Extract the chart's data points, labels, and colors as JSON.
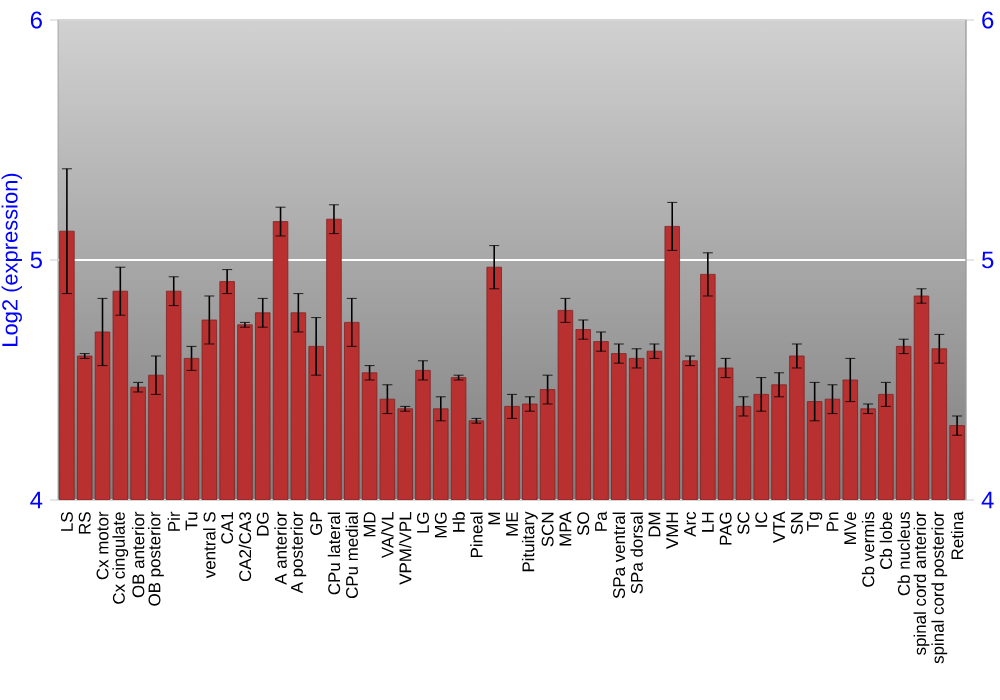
{
  "chart_data": {
    "type": "bar",
    "ylabel": "Log2 (expression)",
    "categories": [
      "LS",
      "RS",
      "Cx motor",
      "Cx cingulate",
      "OB anterior",
      "OB posterior",
      "Pir",
      "Tu",
      "ventral S",
      "CA1",
      "CA2/CA3",
      "DG",
      "A anterior",
      "A posterior",
      "GP",
      "CPu lateral",
      "CPu medial",
      "MD",
      "VA/VL",
      "VPM/VPL",
      "LG",
      "MG",
      "Hb",
      "Pineal",
      "M",
      "ME",
      "Pituitary",
      "SCN",
      "MPA",
      "SO",
      "Pa",
      "SPa ventral",
      "SPa dorsal",
      "DM",
      "VMH",
      "Arc",
      "LH",
      "PAG",
      "SC",
      "IC",
      "VTA",
      "SN",
      "Tg",
      "Pn",
      "MVe",
      "Cb vermis",
      "Cb lobe",
      "Cb nucleus",
      "spinal cord anterior",
      "spinal cord posterior",
      "Retina"
    ],
    "values": [
      5.12,
      4.6,
      4.7,
      4.87,
      4.47,
      4.52,
      4.87,
      4.59,
      4.75,
      4.91,
      4.73,
      4.78,
      5.16,
      4.78,
      4.64,
      5.17,
      4.74,
      4.53,
      4.42,
      4.38,
      4.54,
      4.38,
      4.51,
      4.33,
      4.97,
      4.39,
      4.4,
      4.46,
      4.79,
      4.71,
      4.66,
      4.61,
      4.59,
      4.62,
      5.14,
      4.58,
      4.94,
      4.55,
      4.39,
      4.44,
      4.48,
      4.6,
      4.41,
      4.42,
      4.5,
      4.38,
      4.44,
      4.64,
      4.85,
      4.63,
      4.31
    ],
    "errors": [
      0.26,
      0.01,
      0.14,
      0.1,
      0.02,
      0.08,
      0.06,
      0.05,
      0.1,
      0.05,
      0.01,
      0.06,
      0.06,
      0.08,
      0.12,
      0.06,
      0.1,
      0.03,
      0.06,
      0.01,
      0.04,
      0.05,
      0.01,
      0.01,
      0.09,
      0.05,
      0.03,
      0.06,
      0.05,
      0.04,
      0.04,
      0.04,
      0.04,
      0.03,
      0.1,
      0.02,
      0.09,
      0.04,
      0.04,
      0.07,
      0.05,
      0.05,
      0.08,
      0.06,
      0.09,
      0.02,
      0.05,
      0.03,
      0.03,
      0.06,
      0.04
    ],
    "color": "#b83030",
    "ylim": [
      4,
      6
    ],
    "yticks": [
      4,
      5,
      6
    ],
    "y2lim": [
      4,
      6
    ],
    "y2ticks": [
      4,
      5,
      6
    ],
    "grid": "y"
  }
}
